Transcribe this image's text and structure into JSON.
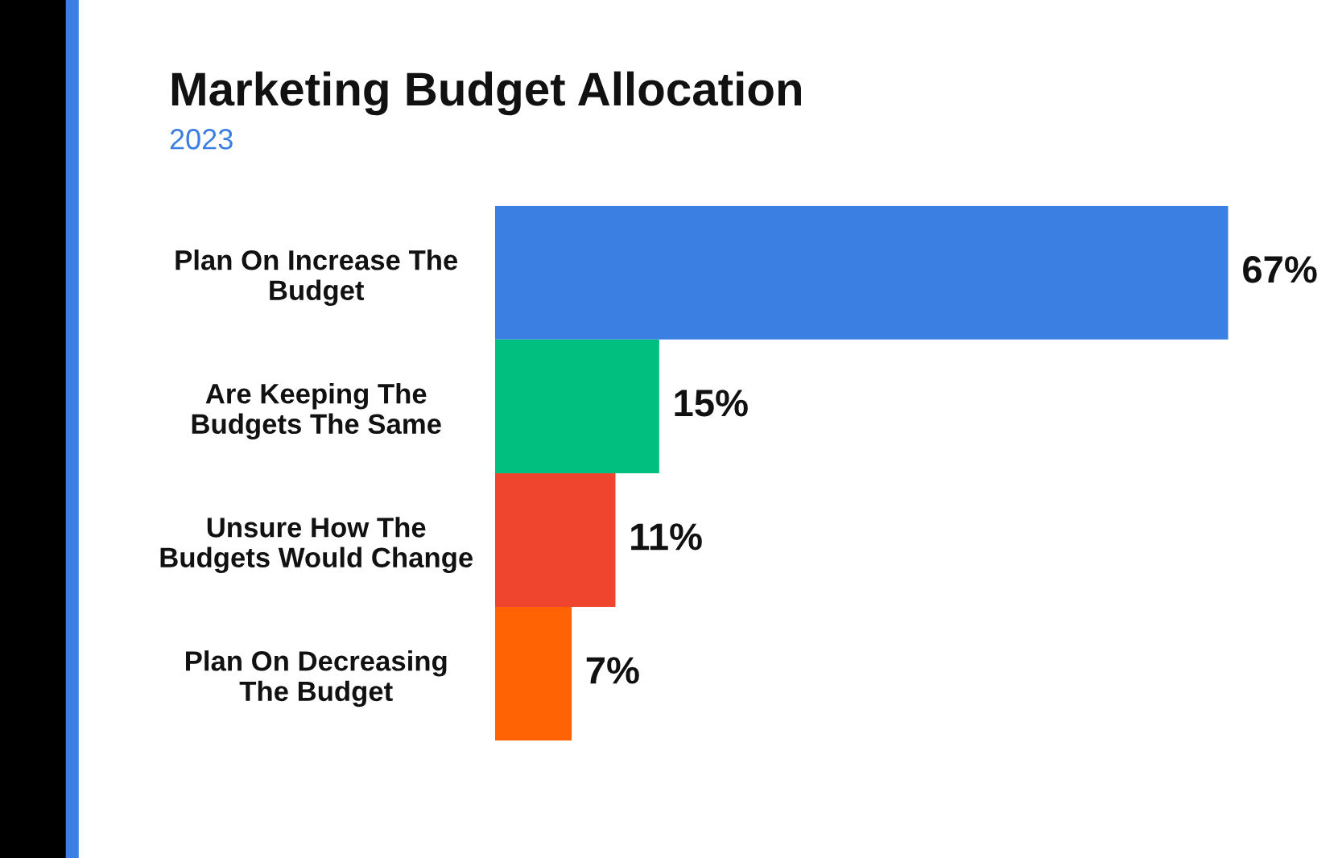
{
  "chart_data": {
    "type": "bar",
    "orientation": "horizontal",
    "title": "Marketing Budget Allocation",
    "subtitle": "2023",
    "categories": [
      "Plan On Increase The Budget",
      "Are Keeping The Budgets The Same",
      "Unsure How The Budgets Would Change",
      "Plan On Decreasing The Budget"
    ],
    "values": [
      67,
      15,
      11,
      7
    ],
    "value_labels": [
      "67%",
      "15%",
      "11%",
      "7%"
    ],
    "colors": [
      "#3b7fe3",
      "#00bf7f",
      "#ef452e",
      "#ff6304"
    ],
    "tick_labels": "y",
    "grid": false,
    "legend": false
  }
}
